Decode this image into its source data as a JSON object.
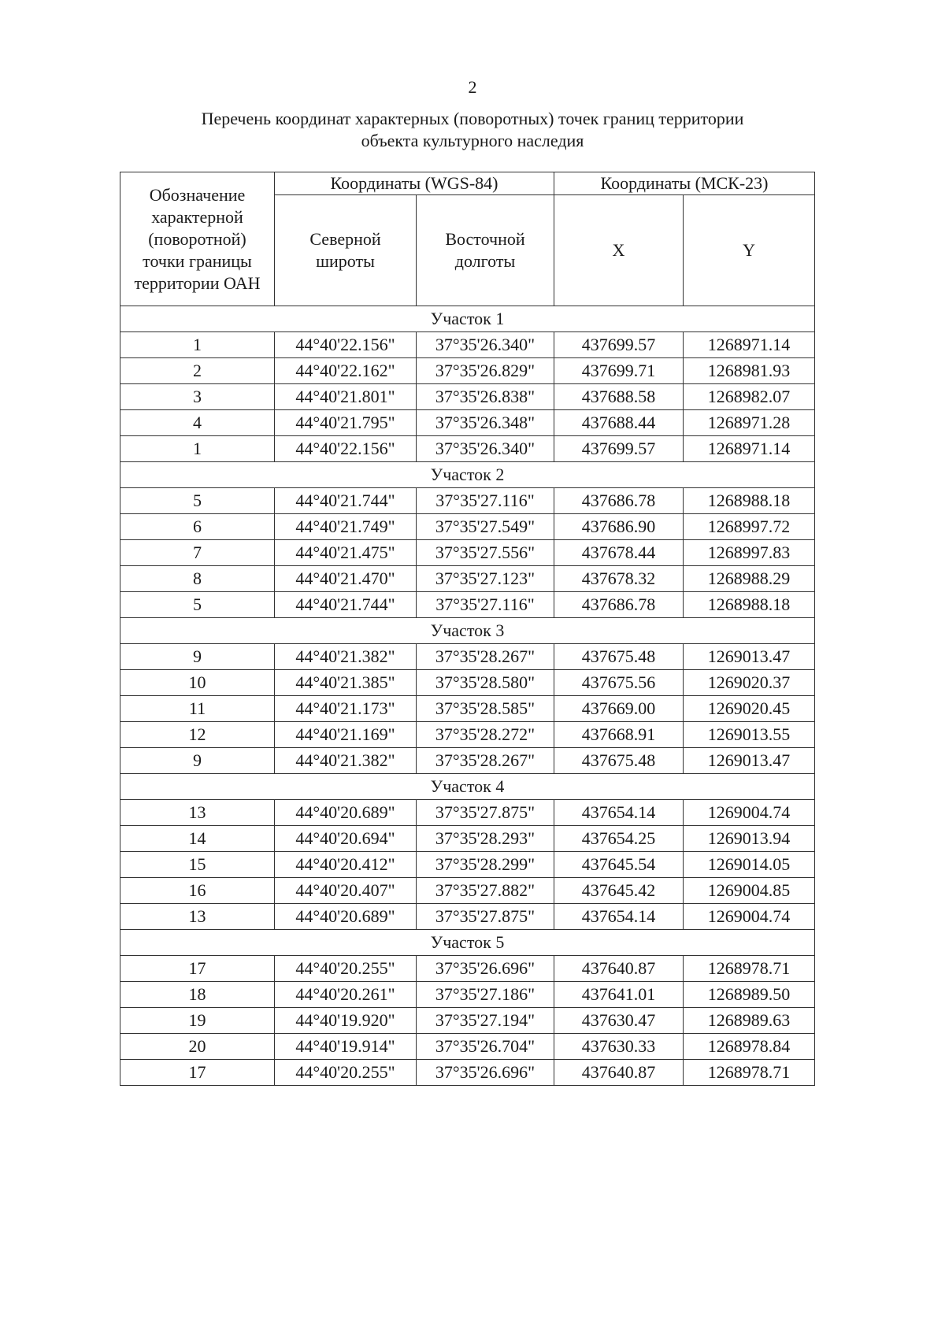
{
  "page_number": "2",
  "title_line1": "Перечень координат характерных (поворотных) точек границ территории",
  "title_line2": "объекта культурного наследия",
  "table": {
    "header": {
      "col1": "Обозначение характерной (поворотной) точки границы территории ОАН",
      "wgs": "Координаты (WGS-84)",
      "msk": "Координаты (МСК-23)",
      "lat": "Северной широты",
      "lon": "Восточной долготы",
      "x": "X",
      "y": "Y"
    },
    "sections": [
      {
        "name": "Участок 1",
        "rows": [
          [
            "1",
            "44°40'22.156\"",
            "37°35'26.340\"",
            "437699.57",
            "1268971.14"
          ],
          [
            "2",
            "44°40'22.162\"",
            "37°35'26.829\"",
            "437699.71",
            "1268981.93"
          ],
          [
            "3",
            "44°40'21.801\"",
            "37°35'26.838\"",
            "437688.58",
            "1268982.07"
          ],
          [
            "4",
            "44°40'21.795\"",
            "37°35'26.348\"",
            "437688.44",
            "1268971.28"
          ],
          [
            "1",
            "44°40'22.156\"",
            "37°35'26.340\"",
            "437699.57",
            "1268971.14"
          ]
        ]
      },
      {
        "name": "Участок 2",
        "rows": [
          [
            "5",
            "44°40'21.744\"",
            "37°35'27.116\"",
            "437686.78",
            "1268988.18"
          ],
          [
            "6",
            "44°40'21.749\"",
            "37°35'27.549\"",
            "437686.90",
            "1268997.72"
          ],
          [
            "7",
            "44°40'21.475\"",
            "37°35'27.556\"",
            "437678.44",
            "1268997.83"
          ],
          [
            "8",
            "44°40'21.470\"",
            "37°35'27.123\"",
            "437678.32",
            "1268988.29"
          ],
          [
            "5",
            "44°40'21.744\"",
            "37°35'27.116\"",
            "437686.78",
            "1268988.18"
          ]
        ]
      },
      {
        "name": "Участок 3",
        "rows": [
          [
            "9",
            "44°40'21.382\"",
            "37°35'28.267\"",
            "437675.48",
            "1269013.47"
          ],
          [
            "10",
            "44°40'21.385\"",
            "37°35'28.580\"",
            "437675.56",
            "1269020.37"
          ],
          [
            "11",
            "44°40'21.173\"",
            "37°35'28.585\"",
            "437669.00",
            "1269020.45"
          ],
          [
            "12",
            "44°40'21.169\"",
            "37°35'28.272\"",
            "437668.91",
            "1269013.55"
          ],
          [
            "9",
            "44°40'21.382\"",
            "37°35'28.267\"",
            "437675.48",
            "1269013.47"
          ]
        ]
      },
      {
        "name": "Участок 4",
        "rows": [
          [
            "13",
            "44°40'20.689\"",
            "37°35'27.875\"",
            "437654.14",
            "1269004.74"
          ],
          [
            "14",
            "44°40'20.694\"",
            "37°35'28.293\"",
            "437654.25",
            "1269013.94"
          ],
          [
            "15",
            "44°40'20.412\"",
            "37°35'28.299\"",
            "437645.54",
            "1269014.05"
          ],
          [
            "16",
            "44°40'20.407\"",
            "37°35'27.882\"",
            "437645.42",
            "1269004.85"
          ],
          [
            "13",
            "44°40'20.689\"",
            "37°35'27.875\"",
            "437654.14",
            "1269004.74"
          ]
        ]
      },
      {
        "name": "Участок 5",
        "rows": [
          [
            "17",
            "44°40'20.255\"",
            "37°35'26.696\"",
            "437640.87",
            "1268978.71"
          ],
          [
            "18",
            "44°40'20.261\"",
            "37°35'27.186\"",
            "437641.01",
            "1268989.50"
          ],
          [
            "19",
            "44°40'19.920\"",
            "37°35'27.194\"",
            "437630.47",
            "1268989.63"
          ],
          [
            "20",
            "44°40'19.914\"",
            "37°35'26.704\"",
            "437630.33",
            "1268978.84"
          ],
          [
            "17",
            "44°40'20.255\"",
            "37°35'26.696\"",
            "437640.87",
            "1268978.71"
          ]
        ]
      }
    ]
  }
}
